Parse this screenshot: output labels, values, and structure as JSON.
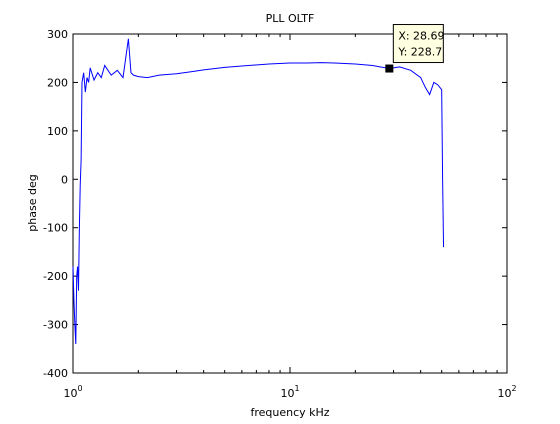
{
  "chart_data": {
    "type": "line",
    "title": "PLL OLTF",
    "xlabel": "frequency kHz",
    "ylabel": "phase deg",
    "xscale": "log",
    "xlim": [
      1,
      100
    ],
    "ylim": [
      -400,
      300
    ],
    "grid": false,
    "line_color": "#0000ff",
    "x_ticks": [
      {
        "value": 1,
        "base": "10",
        "exp": "0"
      },
      {
        "value": 10,
        "base": "10",
        "exp": "1"
      },
      {
        "value": 100,
        "base": "10",
        "exp": "2"
      }
    ],
    "y_ticks": [
      {
        "value": 300,
        "label": "300"
      },
      {
        "value": 200,
        "label": "200"
      },
      {
        "value": 100,
        "label": "100"
      },
      {
        "value": 0,
        "label": "0"
      },
      {
        "value": -100,
        "label": "-100"
      },
      {
        "value": -200,
        "label": "-200"
      },
      {
        "value": -300,
        "label": "-300"
      },
      {
        "value": -400,
        "label": "-400"
      }
    ],
    "series": [
      {
        "x": [
          1.0,
          1.01,
          1.02,
          1.03,
          1.04,
          1.05,
          1.06,
          1.07,
          1.08,
          1.09,
          1.1,
          1.12,
          1.14,
          1.16,
          1.18,
          1.2,
          1.25,
          1.3,
          1.35,
          1.4,
          1.5,
          1.6,
          1.7,
          1.8,
          1.85,
          1.9,
          2.0,
          2.2,
          2.5,
          3.0,
          3.5,
          4.0,
          5.0,
          6.0,
          8.0,
          10.0,
          12.0,
          14.0,
          16.0,
          20.0,
          24.0,
          28.69,
          32.0,
          36.0,
          40.0,
          42.0,
          44.0,
          46.0,
          48.0,
          49.0,
          50.0,
          50.5,
          51.0
        ],
        "y": [
          -180,
          -250,
          -300,
          -340,
          -200,
          -180,
          -230,
          -100,
          -10,
          40,
          200,
          220,
          180,
          210,
          200,
          230,
          205,
          220,
          210,
          235,
          215,
          225,
          210,
          290,
          220,
          215,
          212,
          210,
          215,
          218,
          222,
          226,
          231,
          234,
          238,
          240,
          240,
          241,
          240,
          238,
          235,
          228.7,
          232,
          225,
          210,
          190,
          175,
          200,
          195,
          190,
          185,
          0,
          -140
        ]
      }
    ],
    "datatip": {
      "x": 28.69,
      "y": 228.7,
      "x_text": "X: 28.69",
      "y_text": "Y: 228.7"
    }
  }
}
